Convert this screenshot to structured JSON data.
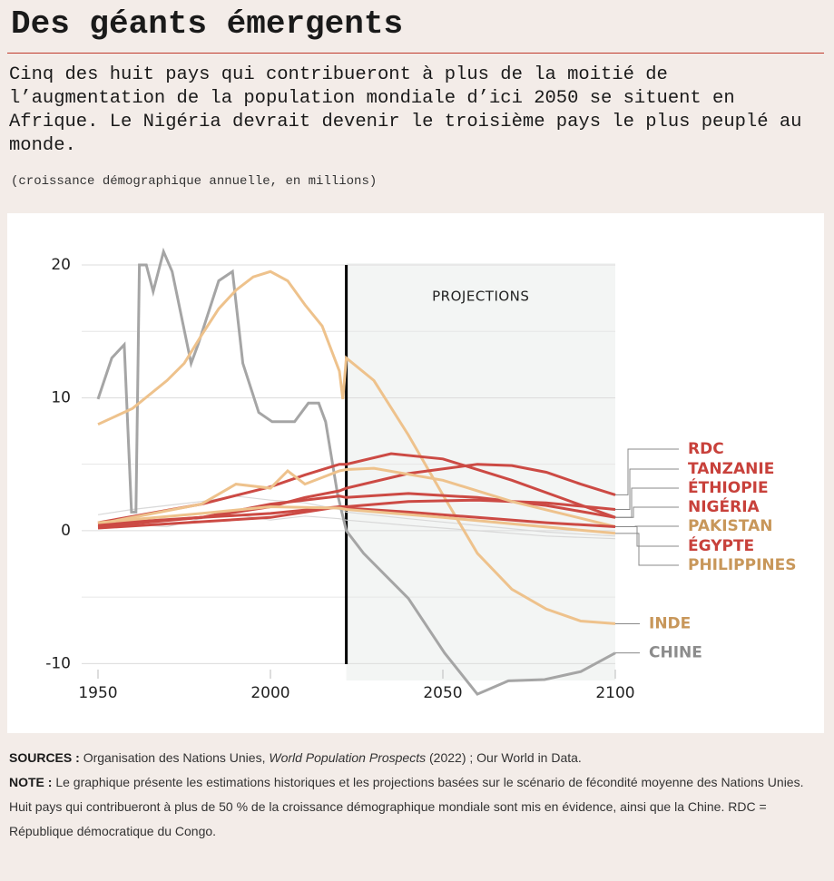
{
  "chart_data": {
    "type": "line",
    "title": "Des géants émergents",
    "subtitle": "Cinq des huit pays qui contribueront à plus de la moitié de l’augmentation de la population mondiale d’ici 2050 se situent en Afrique. Le Nigéria devrait devenir le troisième pays le plus peuplé au monde.",
    "y_label": "(croissance démographique annuelle, en millions)",
    "annotation": "PROJECTIONS",
    "projection_start": 2022,
    "xlim": [
      1950,
      2100
    ],
    "xticks": [
      1950,
      2000,
      2050,
      2100
    ],
    "ylim": [
      -12.5,
      21.5
    ],
    "yticks": [
      -10,
      0,
      10,
      20
    ],
    "minor_yticks": [
      -5,
      5,
      15
    ],
    "grid": true,
    "series": [
      {
        "x": [
          1950,
          1960,
          1970,
          1980,
          1990,
          2000,
          2010,
          2020,
          2022,
          2040,
          2060,
          2080,
          2100
        ],
        "values": [
          0.2,
          0.5,
          0.3,
          0.9,
          1.2,
          0.8,
          1.1,
          0.9,
          0.8,
          0.4,
          0.0,
          -0.4,
          -0.6
        ],
        "color": "#d8d8d8"
      },
      {
        "x": [
          1950,
          1960,
          1970,
          1980,
          1990,
          2000,
          2010,
          2020,
          2022,
          2040,
          2060,
          2080,
          2100
        ],
        "values": [
          1.2,
          1.6,
          1.9,
          2.2,
          2.6,
          2.3,
          2.1,
          1.6,
          1.4,
          0.9,
          0.4,
          -0.1,
          -0.4
        ],
        "color": "#d8d8d8"
      },
      {
        "name": "CHINE",
        "x": [
          1950,
          1954,
          1957.6,
          1959.7,
          1961,
          1962,
          1964,
          1966,
          1969,
          1971.5,
          1977,
          1979,
          1985,
          1989,
          1992,
          1996.6,
          2000.5,
          2007,
          2011,
          2014,
          2016,
          2019.5,
          2022,
          2027,
          2040,
          2050.5,
          2060,
          2069,
          2079.5,
          2090,
          2100
        ],
        "values": [
          9.9,
          13,
          14,
          1.4,
          1.4,
          20,
          20,
          18,
          21,
          19.5,
          12.6,
          14,
          18.8,
          19.5,
          12.6,
          8.9,
          8.2,
          8.2,
          9.6,
          9.6,
          8.2,
          2.7,
          0,
          -1.7,
          -5.1,
          -9.2,
          -12.3,
          -11.3,
          -11.2,
          -10.6,
          -9.2
        ],
        "color": "#a5a5a5",
        "label_color": "#8c8c8c"
      },
      {
        "name": "INDE",
        "x": [
          1950,
          1960,
          1970,
          1975,
          1980,
          1985,
          1990,
          1995,
          2000,
          2005,
          2010,
          2015,
          2020,
          2021,
          2022,
          2030,
          2040,
          2050,
          2060,
          2070,
          2080,
          2090,
          2100
        ],
        "values": [
          8,
          9.2,
          11.3,
          12.6,
          14.7,
          16.7,
          18.1,
          19.1,
          19.5,
          18.8,
          17,
          15.4,
          12,
          9.9,
          13,
          11.3,
          7.2,
          2.7,
          -1.7,
          -4.4,
          -5.9,
          -6.8,
          -7
        ],
        "color": "#eec28c",
        "label_color": "#c8975a"
      },
      {
        "name": "RDC",
        "x": [
          1950,
          1980,
          2000,
          2010,
          2020,
          2022,
          2040,
          2060,
          2070,
          2080,
          2090,
          2100
        ],
        "values": [
          0.3,
          1,
          1.8,
          2.5,
          3,
          3.2,
          4.3,
          5,
          4.9,
          4.4,
          3.5,
          2.7
        ],
        "color": "#cc4a44",
        "label_color": "#c8413b"
      },
      {
        "name": "TANZANIE",
        "x": [
          1950,
          2000,
          2020,
          2022,
          2040,
          2060,
          2080,
          2100
        ],
        "values": [
          0.2,
          1,
          1.8,
          1.8,
          2.2,
          2.3,
          2.1,
          1.6
        ],
        "color": "#cc4a44",
        "label_color": "#c8413b"
      },
      {
        "name": "ÉTHIOPIE",
        "x": [
          1950,
          1980,
          2000,
          2020,
          2022,
          2040,
          2060,
          2080,
          2100
        ],
        "values": [
          0.4,
          1,
          2,
          2.6,
          2.5,
          2.8,
          2.5,
          1.9,
          1
        ],
        "color": "#cc4a44",
        "label_color": "#c8413b"
      },
      {
        "name": "NIGÉRIA",
        "x": [
          1950,
          1980,
          2000,
          2010,
          2020,
          2022,
          2035,
          2050,
          2070,
          2100
        ],
        "values": [
          0.6,
          2,
          3.3,
          4.2,
          5,
          5,
          5.8,
          5.4,
          3.8,
          1
        ],
        "color": "#cc4a44",
        "label_color": "#c8413b"
      },
      {
        "name": "PAKISTAN",
        "x": [
          1950,
          1980,
          1990,
          2000,
          2005,
          2010,
          2020,
          2022,
          2030,
          2050,
          2070,
          2100
        ],
        "values": [
          0.5,
          2,
          3.5,
          3.2,
          4.5,
          3.5,
          4.5,
          4.6,
          4.7,
          3.8,
          2.2,
          0.3
        ],
        "color": "#eec28c",
        "label_color": "#c8975a"
      },
      {
        "name": "ÉGYPTE",
        "x": [
          1950,
          1980,
          2000,
          2020,
          2022,
          2040,
          2060,
          2080,
          2100
        ],
        "values": [
          0.5,
          1,
          1.3,
          1.8,
          1.7,
          1.4,
          1,
          0.6,
          0.3
        ],
        "color": "#cc4a44",
        "label_color": "#c8413b"
      },
      {
        "name": "PHILIPPINES",
        "x": [
          1950,
          1980,
          2000,
          2020,
          2022,
          2050,
          2100
        ],
        "values": [
          0.6,
          1.3,
          1.8,
          1.7,
          1.6,
          1,
          -0.2
        ],
        "color": "#eec28c",
        "label_color": "#c8975a"
      }
    ],
    "sources_label": "SOURCES :",
    "sources": [
      "Organisation des Nations Unies, ",
      "World Population Prospects",
      " (2022) ; Our World in Data."
    ],
    "note_label": "NOTE :",
    "note": "Le graphique présente les estimations historiques et les projections basées sur le scénario de fécondité moyenne des Nations Unies. Huit pays qui contribueront à plus de 50 % de la croissance démographique mondiale sont mis en évidence, ainsi que la Chine. RDC = République démocratique du Congo."
  }
}
